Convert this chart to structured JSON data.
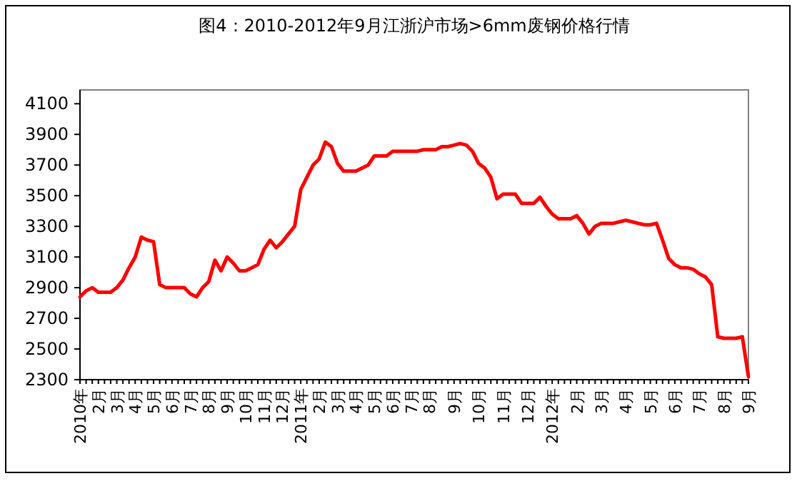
{
  "chart_data": {
    "type": "line",
    "title": "图4：2010-2012年9月江浙沪市场>6mm废钢价格行情",
    "categories": [
      "2010年",
      null,
      null,
      "2月",
      null,
      null,
      "3月",
      null,
      null,
      "4月",
      null,
      null,
      "5月",
      null,
      null,
      "6月",
      null,
      null,
      "7月",
      null,
      null,
      "8月",
      null,
      null,
      "9月",
      null,
      null,
      "10月",
      null,
      null,
      "11月",
      null,
      null,
      "12月",
      null,
      null,
      "2011年",
      null,
      null,
      "2月",
      null,
      null,
      "3月",
      null,
      null,
      "4月",
      null,
      null,
      "5月",
      null,
      null,
      "6月",
      null,
      null,
      "7月",
      null,
      null,
      "8月",
      null,
      null,
      null,
      "9月",
      null,
      null,
      null,
      "10月",
      null,
      null,
      null,
      "11月",
      null,
      null,
      null,
      "12月",
      null,
      null,
      null,
      "2012年",
      null,
      null,
      null,
      "2月",
      null,
      null,
      null,
      "3月",
      null,
      null,
      null,
      "4月",
      null,
      null,
      null,
      "5月",
      null,
      null,
      null,
      "6月",
      null,
      null,
      null,
      "7月",
      null,
      null,
      null,
      "8月",
      null,
      null,
      null,
      "9月"
    ],
    "series": [
      {
        "color": "#ff0000",
        "values": [
          2840,
          2880,
          2900,
          2870,
          2870,
          2870,
          2900,
          2950,
          3030,
          3100,
          3230,
          3210,
          3200,
          2920,
          2900,
          2900,
          2900,
          2900,
          2860,
          2840,
          2900,
          2940,
          3080,
          3010,
          3100,
          3060,
          3010,
          3010,
          3030,
          3050,
          3150,
          3210,
          3160,
          3200,
          3250,
          3300,
          3540,
          3620,
          3700,
          3740,
          3850,
          3820,
          3710,
          3660,
          3660,
          3660,
          3680,
          3700,
          3760,
          3760,
          3760,
          3790,
          3790,
          3790,
          3790,
          3790,
          3800,
          3800,
          3800,
          3820,
          3820,
          3830,
          3840,
          3830,
          3790,
          3710,
          3680,
          3620,
          3480,
          3510,
          3510,
          3510,
          3450,
          3450,
          3450,
          3490,
          3430,
          3380,
          3350,
          3350,
          3350,
          3370,
          3320,
          3250,
          3300,
          3320,
          3320,
          3320,
          3330,
          3340,
          3330,
          3320,
          3310,
          3310,
          3320,
          3210,
          3090,
          3050,
          3030,
          3030,
          3020,
          2990,
          2970,
          2920,
          2580,
          2570,
          2570,
          2570,
          2580,
          2320
        ]
      }
    ],
    "ylim": [
      2300,
      4190
    ],
    "yticks": [
      2300,
      2500,
      2700,
      2900,
      3100,
      3300,
      3500,
      3700,
      3900,
      4100
    ],
    "marker": "none",
    "line_style": "solid"
  }
}
